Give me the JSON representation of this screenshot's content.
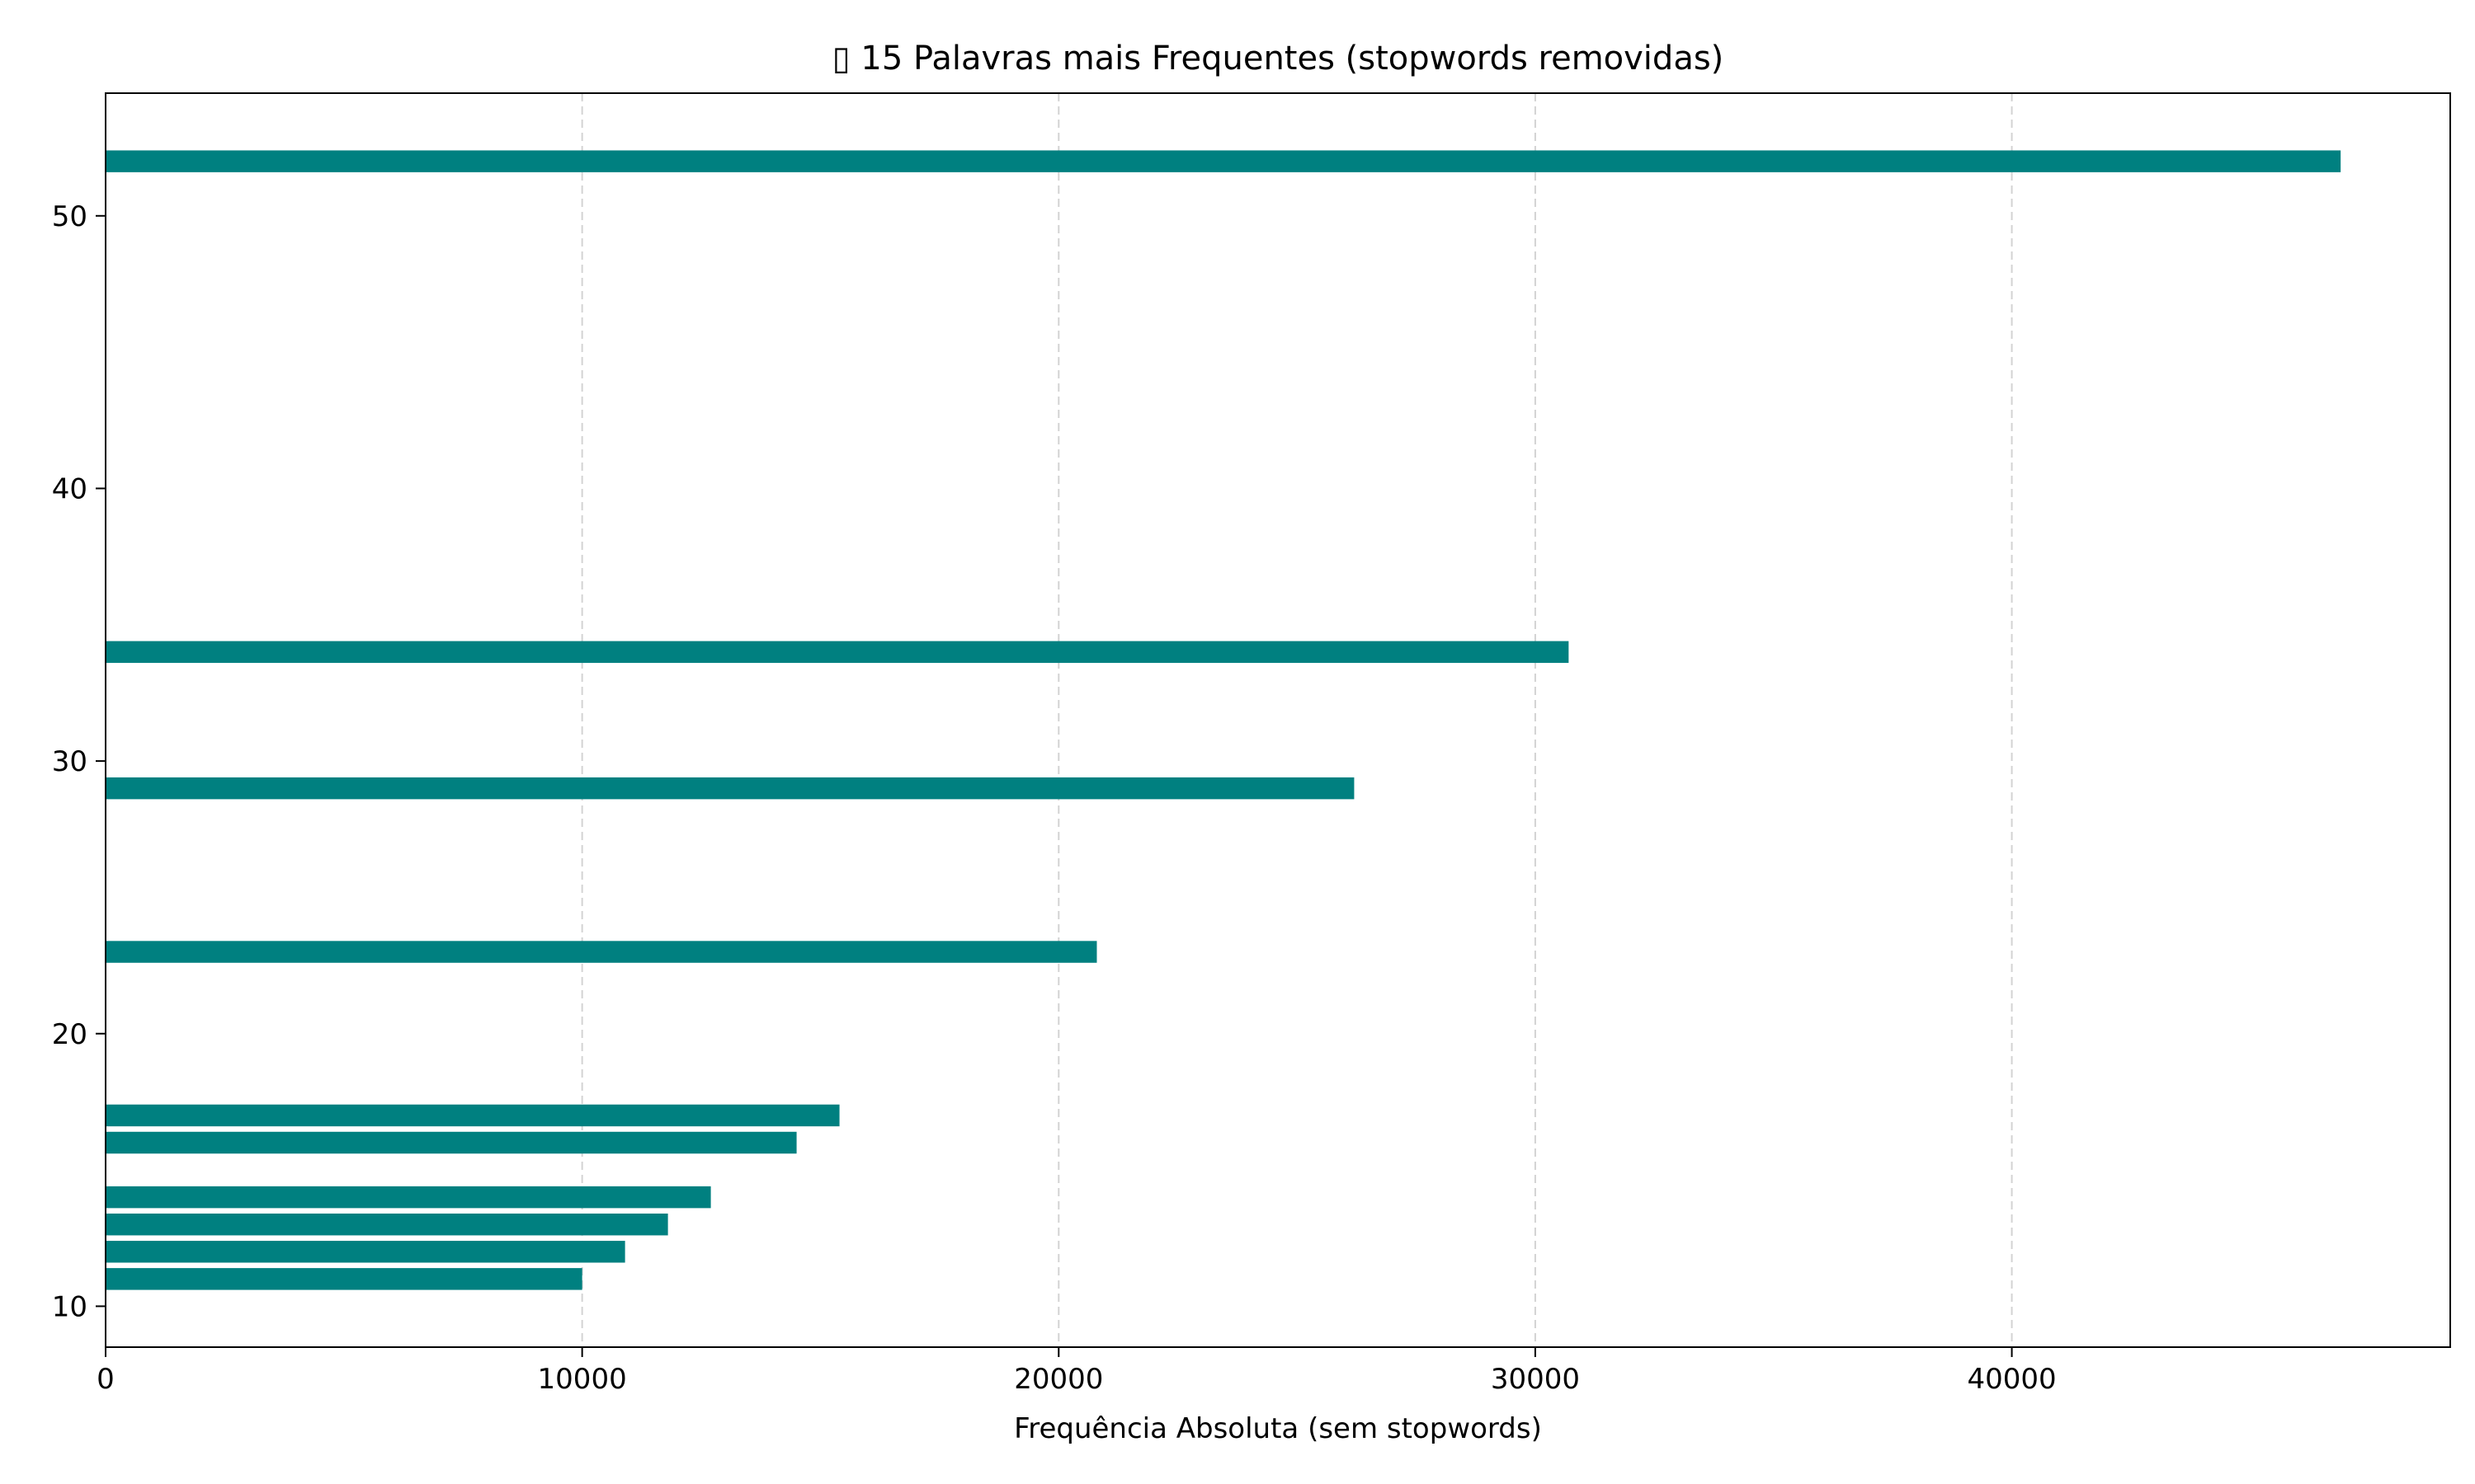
{
  "chart_data": {
    "type": "bar",
    "orientation": "horizontal",
    "title": "▯ 15 Palavras mais Frequentes (stopwords removidas)",
    "xlabel": "Frequência Absoluta (sem stopwords)",
    "ylabel": "",
    "xlim": [
      0,
      49200
    ],
    "ylim": [
      8.5,
      54.5
    ],
    "xticks": [
      0,
      10000,
      20000,
      30000,
      40000
    ],
    "yticks": [
      10,
      20,
      30,
      40,
      50
    ],
    "grid": {
      "x": true,
      "y": false,
      "style": "dashed"
    },
    "bar_color": "#008080",
    "y": [
      52,
      34,
      29,
      23,
      17,
      16,
      14,
      13,
      12,
      11
    ],
    "values": [
      46900,
      30700,
      26200,
      20800,
      15400,
      14500,
      12700,
      11800,
      10900,
      10000
    ]
  }
}
